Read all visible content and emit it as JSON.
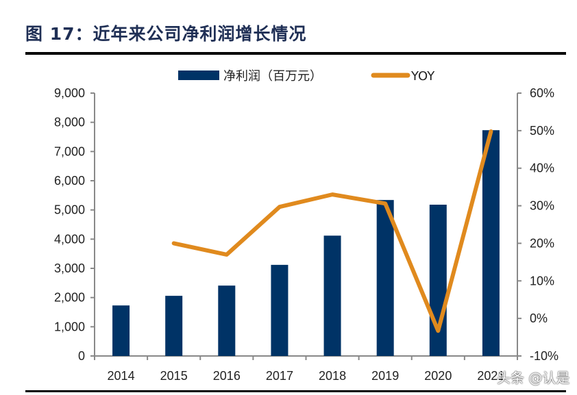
{
  "title": "图 17：近年来公司净利润增长情况",
  "watermark": "头条 @认是",
  "chart_data": {
    "type": "bar+line",
    "title": "",
    "categories": [
      "2014",
      "2015",
      "2016",
      "2017",
      "2018",
      "2019",
      "2020",
      "2021"
    ],
    "series": [
      {
        "name": "净利润（百万元）",
        "type": "bar",
        "axis": "left",
        "color": "#003366",
        "values": [
          1730,
          2060,
          2410,
          3120,
          4120,
          5340,
          5180,
          7730
        ]
      },
      {
        "name": "YOY",
        "type": "line",
        "axis": "right",
        "color": "#e08a1e",
        "values": [
          null,
          20,
          17,
          29.7,
          33,
          30.6,
          -3.3,
          49.8
        ]
      }
    ],
    "left_axis": {
      "ylim": [
        0,
        9000
      ],
      "ticks": [
        "0",
        "1,000",
        "2,000",
        "3,000",
        "4,000",
        "5,000",
        "6,000",
        "7,000",
        "8,000",
        "9,000"
      ]
    },
    "right_axis": {
      "ylim": [
        -10,
        60
      ],
      "ticks": [
        "-10%",
        "0%",
        "10%",
        "20%",
        "30%",
        "40%",
        "50%",
        "60%"
      ]
    },
    "legend": "top",
    "grid": false
  }
}
